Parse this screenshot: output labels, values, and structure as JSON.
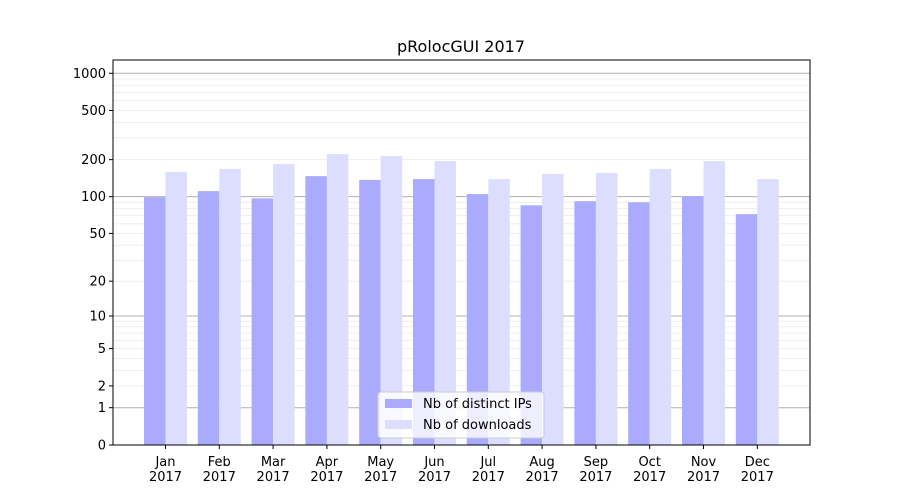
{
  "chart_data": {
    "type": "bar",
    "title": "pRolocGUI 2017",
    "xlabel": "",
    "ylabel": "",
    "yscale": "log(y+1)",
    "ylim": [
      0,
      1280
    ],
    "yticks": [
      0,
      1,
      2,
      5,
      10,
      20,
      50,
      100,
      200,
      500,
      1000
    ],
    "grid": true,
    "legend_position": "lower center",
    "categories": [
      "Jan\n2017",
      "Feb\n2017",
      "Mar\n2017",
      "Apr\n2017",
      "May\n2017",
      "Jun\n2017",
      "Jul\n2017",
      "Aug\n2017",
      "Sep\n2017",
      "Oct\n2017",
      "Nov\n2017",
      "Dec\n2017"
    ],
    "series": [
      {
        "name": "Nb of distinct IPs",
        "color": "#aaaaff",
        "values": [
          99,
          111,
          97,
          147,
          137,
          139,
          105,
          85,
          92,
          90,
          101,
          72
        ]
      },
      {
        "name": "Nb of downloads",
        "color": "#ddddff",
        "values": [
          159,
          168,
          184,
          222,
          214,
          195,
          139,
          153,
          156,
          168,
          195,
          139
        ]
      }
    ]
  }
}
